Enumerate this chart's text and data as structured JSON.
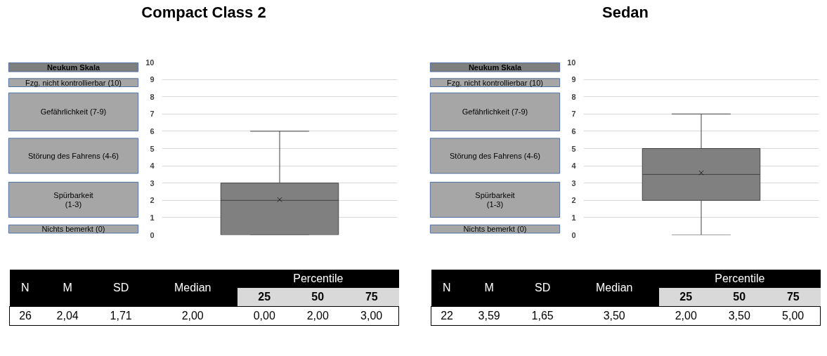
{
  "chart_data": [
    {
      "type": "box",
      "title": "Compact Class 2",
      "categories": [
        null
      ],
      "boxes": [
        {
          "low": 0,
          "q1": 0,
          "median": 2,
          "q3": 3,
          "high": 6,
          "mean": 2.04
        }
      ],
      "color": "#808080",
      "ylim": [
        0,
        10
      ],
      "yticks": [
        0,
        1,
        2,
        3,
        4,
        5,
        6,
        7,
        8,
        9,
        10
      ],
      "grid": "y",
      "marker": "cross",
      "annotations": [
        "Neukum Skala",
        "Fzg. nicht kontrollierbar (10)",
        "Gefährlichkeit (7-9)",
        "Störung des Fahrens (4-6)",
        "Spürbarkeit\n(1-3)",
        "Nichts bemerkt (0)",
        "N",
        "M",
        "SD",
        "Median",
        "Percentile",
        "25",
        "50",
        "75",
        "26",
        "2,04",
        "1,71",
        "2,00",
        "0,00",
        "2,00",
        "3,00"
      ]
    },
    {
      "type": "box",
      "title": "Sedan",
      "categories": [
        null
      ],
      "boxes": [
        {
          "low": 0,
          "q1": 2,
          "median": 3.5,
          "q3": 5,
          "high": 7,
          "mean": 3.59
        }
      ],
      "color": "#808080",
      "ylim": [
        0,
        10
      ],
      "yticks": [
        0,
        1,
        2,
        3,
        4,
        5,
        6,
        7,
        8,
        9,
        10
      ],
      "grid": "y",
      "marker": "cross",
      "annotations": [
        "Neukum Skala",
        "Fzg. nicht kontrollierbar (10)",
        "Gefährlichkeit (7-9)",
        "Störung des Fahrens (4-6)",
        "Spürbarkeit\n(1-3)",
        "Nichts bemerkt (0)",
        "N",
        "M",
        "SD",
        "Median",
        "Percentile",
        "25",
        "50",
        "75",
        "22",
        "3,59",
        "1,65",
        "3,50",
        "2,00",
        "3,50",
        "5,00"
      ]
    }
  ]
}
